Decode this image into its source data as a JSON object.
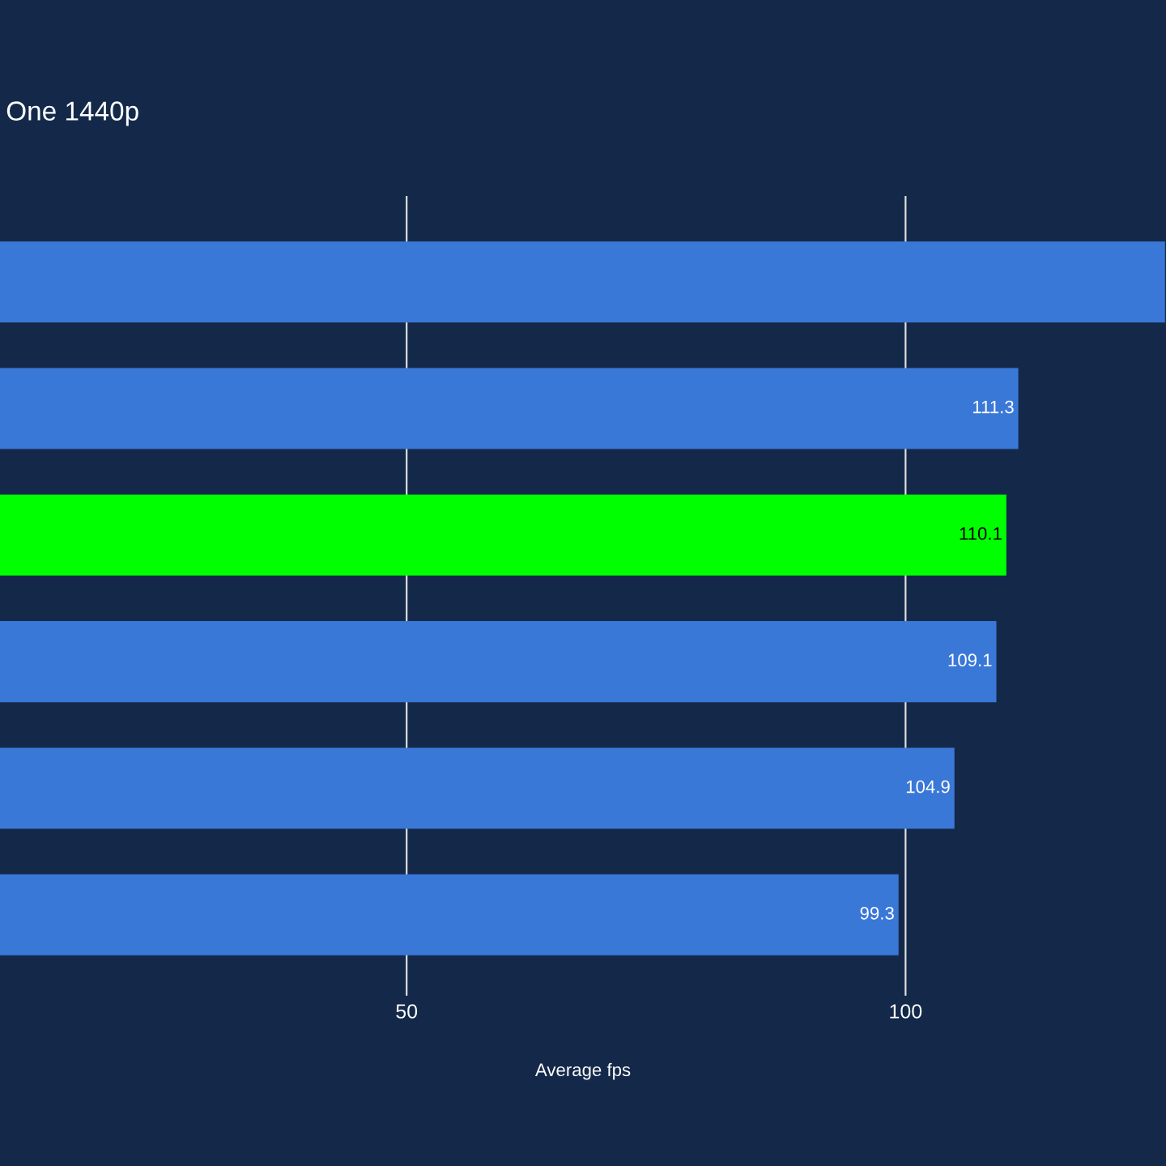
{
  "chart_data": {
    "type": "bar",
    "orientation": "horizontal",
    "title": "One 1440p",
    "xlabel": "Average fps",
    "categories": [
      null,
      null,
      null,
      null,
      null,
      null
    ],
    "values": [
      126,
      111.3,
      110.1,
      109.1,
      104.9,
      99.3
    ],
    "colors": [
      "#3a78d8",
      "#3a78d8",
      "#00ff00",
      "#3a78d8",
      "#3a78d8",
      "#3a78d8"
    ],
    "value_labels": [
      null,
      "111.3",
      "110.1",
      "109.1",
      "104.9",
      "99.3"
    ],
    "xlim": [
      9.25,
      126.1
    ],
    "xticks": [
      50,
      100
    ],
    "grid": "x",
    "tick_labels": "x"
  }
}
